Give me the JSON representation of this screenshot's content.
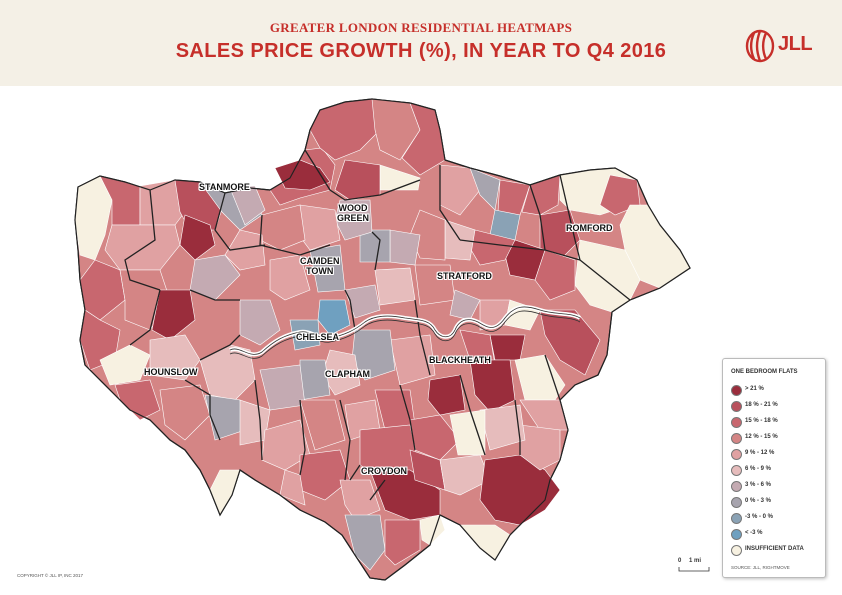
{
  "header": {
    "supertitle": "GREATER LONDON RESIDENTIAL HEATMAPS",
    "title": "SALES PRICE GROWTH (%), IN YEAR TO Q4 2016",
    "logo_text": "JLL"
  },
  "colors": {
    "header_bg": "#f4f0e6",
    "title_red": "#c62f2a",
    "over21": "#9a2d3c",
    "c18_21": "#b8505c",
    "c15_18": "#c8676f",
    "c12_15": "#d48585",
    "c9_12": "#e0a1a2",
    "c6_9": "#e6bcbc",
    "c3_6": "#c4aab2",
    "c0_3": "#a7a4ae",
    "cm3_0": "#8aa2b5",
    "cltm3": "#6fa0c0",
    "insufficient": "#f7f1e1"
  },
  "places": [
    {
      "id": "stanmore",
      "label": "STANMORE"
    },
    {
      "id": "wood-green",
      "label": "WOOD\nGREEN"
    },
    {
      "id": "romford",
      "label": "ROMFORD"
    },
    {
      "id": "camden-town",
      "label": "CAMDEN\nTOWN"
    },
    {
      "id": "stratford",
      "label": "STRATFORD"
    },
    {
      "id": "chelsea",
      "label": "CHELSEA"
    },
    {
      "id": "hounslow",
      "label": "HOUNSLOW"
    },
    {
      "id": "clapham",
      "label": "CLAPHAM"
    },
    {
      "id": "blackheath",
      "label": "BLACKHEATH"
    },
    {
      "id": "croydon",
      "label": "CROYDON"
    }
  ],
  "legend": {
    "title": "ONE BEDROOM FLATS",
    "items": [
      {
        "label": "> 21 %",
        "color": "#9a2d3c"
      },
      {
        "label": "18 % - 21 %",
        "color": "#b8505c"
      },
      {
        "label": "15 % - 18 %",
        "color": "#c8676f"
      },
      {
        "label": "12 % - 15 %",
        "color": "#d48585"
      },
      {
        "label": "9 % - 12 %",
        "color": "#e0a1a2"
      },
      {
        "label": "6 % - 9 %",
        "color": "#e6bcbc"
      },
      {
        "label": "3 % - 6 %",
        "color": "#c4aab2"
      },
      {
        "label": "0 % - 3 %",
        "color": "#a7a4ae"
      },
      {
        "label": "-3 % - 0 %",
        "color": "#8aa2b5"
      },
      {
        "label": "< -3 %",
        "color": "#6fa0c0"
      },
      {
        "label": "INSUFFICIENT DATA",
        "color": "#f7f1e1"
      }
    ],
    "source": "SOURCE: JLL, RIGHTMOVE"
  },
  "scale": {
    "zero": "0",
    "one": "1 mi"
  },
  "copyright": "COPYRIGHT © JLL IP, INC 2017"
}
